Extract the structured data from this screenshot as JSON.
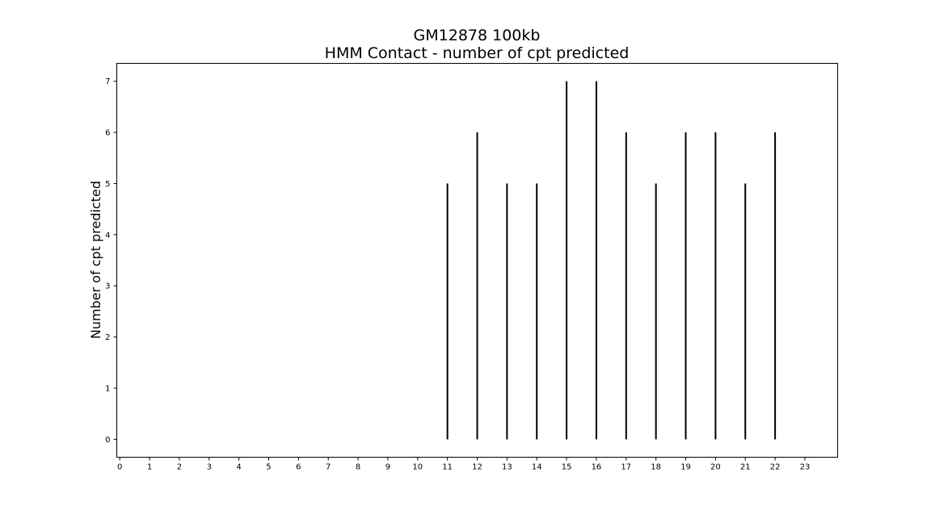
{
  "chart_data": {
    "type": "bar",
    "title": "GM12878 100kb",
    "subtitle": "HMM Contact - number of cpt predicted",
    "xlabel": "",
    "ylabel": "Number of cpt predicted",
    "x_ticks": [
      "0",
      "1",
      "2",
      "3",
      "4",
      "5",
      "6",
      "7",
      "8",
      "9",
      "10",
      "11",
      "12",
      "13",
      "14",
      "15",
      "16",
      "17",
      "18",
      "19",
      "20",
      "21",
      "22",
      "23"
    ],
    "y_ticks": [
      "0",
      "1",
      "2",
      "3",
      "4",
      "5",
      "6",
      "7"
    ],
    "xlim": [
      -0.1,
      24.1
    ],
    "ylim": [
      -0.35,
      7.35
    ],
    "categories": [
      "11",
      "12",
      "13",
      "14",
      "15",
      "16",
      "17",
      "18",
      "19",
      "20",
      "21",
      "22"
    ],
    "x": [
      11,
      12,
      13,
      14,
      15,
      16,
      17,
      18,
      19,
      20,
      21,
      22
    ],
    "values": [
      5,
      6,
      5,
      5,
      7,
      7,
      6,
      5,
      6,
      6,
      5,
      6
    ],
    "bar_color": "#000000",
    "grid": false,
    "legend": "none"
  }
}
